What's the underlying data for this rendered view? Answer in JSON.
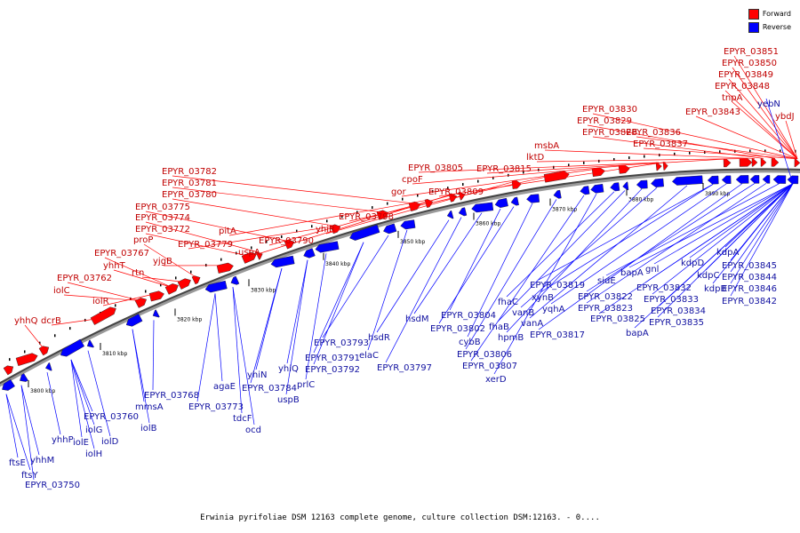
{
  "legend": {
    "forward_label": "Forward",
    "reverse_label": "Reverse",
    "forward_color": "#ff0000",
    "reverse_color": "#0000ff"
  },
  "caption": "Erwinia pyrifoliae DSM 12163 complete genome, culture collection DSM:12163. - 0....",
  "ticks": [
    "3800 kbp",
    "3810 kbp",
    "3820 kbp",
    "3830 kbp",
    "3840 kbp",
    "3850 kbp",
    "3860 kbp",
    "3870 kbp",
    "3880 kbp",
    "3890 kbp"
  ],
  "forward_genes": [
    "yhhQ",
    "dcrB",
    "iolC",
    "EPYR_03762",
    "iolR",
    "EPYR_03767",
    "yhhT",
    "rtn",
    "proP",
    "yjgB",
    "EPYR_03772",
    "EPYR_03774",
    "EPYR_03775",
    "EPYR_03780",
    "EPYR_03781",
    "EPYR_03782",
    "EPYR_03779",
    "pitA",
    "uspA",
    "EPYR_03790",
    "yhiR",
    "EPYR_03798",
    "gor",
    "cpoF",
    "EPYR_03805",
    "EPYR_03809",
    "EPYR_03815",
    "lktD",
    "msbA",
    "EPYR_03826",
    "EPYR_03829",
    "EPYR_03830",
    "EPYR_03836",
    "EPYR_03837",
    "EPYR_03843",
    "tnpA",
    "EPYR_03848",
    "EPYR_03849",
    "EPYR_03850",
    "EPYR_03851",
    "ybdJ"
  ],
  "reverse_genes": [
    "ftsE",
    "ftsY",
    "yhhM",
    "EPYR_03750",
    "yhhP",
    "iolE",
    "iolG",
    "iolH",
    "EPYR_03760",
    "iolD",
    "iolB",
    "mmsA",
    "EPYR_03768",
    "EPYR_03773",
    "agaE",
    "tdcF",
    "ocd",
    "yhiN",
    "EPYR_03784",
    "yhiQ",
    "uspB",
    "prlC",
    "EPYR_03791",
    "EPYR_03792",
    "EPYR_03793",
    "elaC",
    "hsdR",
    "EPYR_03797",
    "hsdM",
    "EPYR_03804",
    "EPYR_03802",
    "cybB",
    "EPYR_03806",
    "EPYR_03807",
    "xerD",
    "fhaC",
    "fhaB",
    "hpmB",
    "vanB",
    "vanA",
    "xynB",
    "EPYR_03819",
    "yqhA",
    "EPYR_03817",
    "EPYR_03822",
    "EPYR_03823",
    "sidE",
    "EPYR_03825",
    "bapA",
    "bapA",
    "gnl",
    "EPYR_03832",
    "EPYR_03833",
    "EPYR_03834",
    "EPYR_03835",
    "kdpD",
    "kdpC",
    "kdpB",
    "kdpA",
    "EPYR_03845",
    "EPYR_03844",
    "EPYR_03846",
    "EPYR_03842",
    "yebN"
  ]
}
